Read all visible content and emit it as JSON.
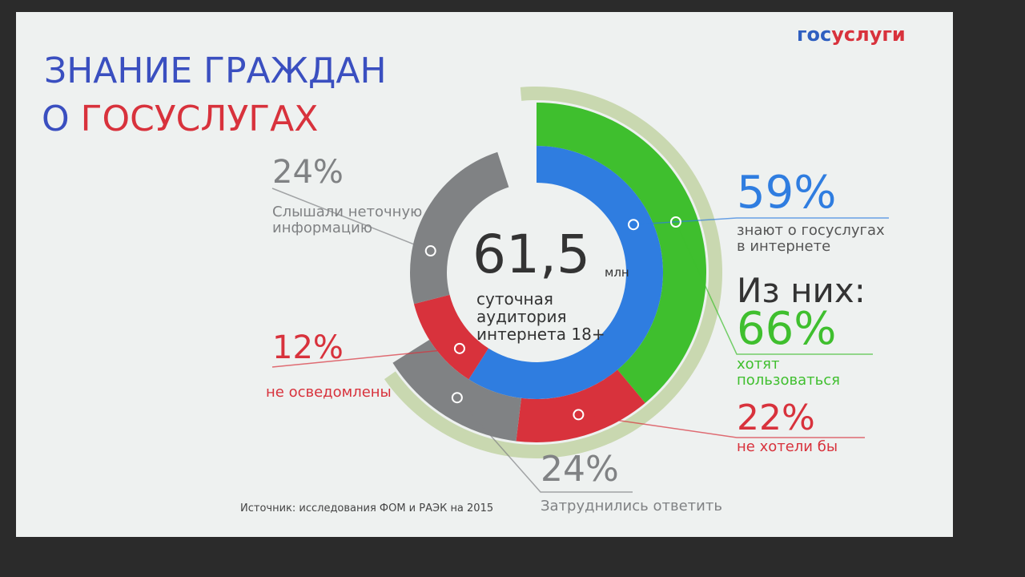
{
  "brand": {
    "part1": "гос",
    "part2": "услуги"
  },
  "title": {
    "line1": "ЗНАНИЕ ГРАЖДАН",
    "line2a": "О",
    "line2b": "ГОСУСЛУГАХ"
  },
  "center": {
    "value": "61,5",
    "unit": "млн",
    "caption": "суточная аудитория интернета 18+"
  },
  "chart_data": {
    "type": "donut",
    "inner": {
      "values": [
        59,
        12,
        24
      ],
      "value_labels": [
        "59%",
        "12%",
        "24%"
      ],
      "captions": [
        "знают о госуслугах в интернете",
        "не осведомлены",
        "Слышали неточную информацию"
      ],
      "colors": [
        "#2f7de0",
        "#d8323c",
        "#808284"
      ]
    },
    "subtitle": "Из них:",
    "outer": {
      "values": [
        66,
        22,
        24
      ],
      "value_labels": [
        "66%",
        "22%",
        "24%"
      ],
      "captions": [
        "хотят пользоваться",
        "не хотели бы",
        "Затруднились ответить"
      ],
      "colors": [
        "#3fbf2e",
        "#d8323c",
        "#808284"
      ]
    }
  },
  "source": "Источник: исследования ФОМ и РАЭК на 2015"
}
